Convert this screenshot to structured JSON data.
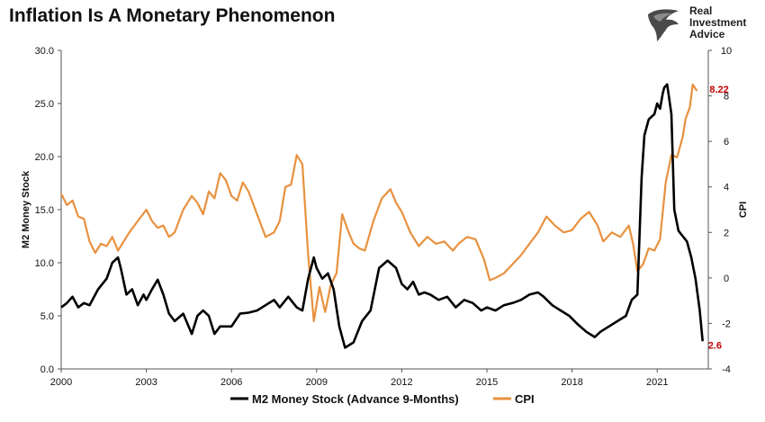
{
  "chart_data": {
    "type": "line",
    "title": "Inflation Is A Monetary Phenomenon",
    "brand": "Real Investment Advice",
    "ylabel_left": "M2 Money Stock",
    "ylabel_right": "CPI",
    "ylim_left": [
      0,
      30
    ],
    "ylim_right": [
      -4,
      10
    ],
    "xlim": [
      2000,
      2022.8
    ],
    "left_ticks": [
      "0.0",
      "5.0",
      "10.0",
      "15.0",
      "20.0",
      "25.0",
      "30.0"
    ],
    "right_ticks": [
      "-4",
      "-2",
      "0",
      "2",
      "4",
      "6",
      "8",
      "10"
    ],
    "x_ticks": [
      "2000",
      "2003",
      "2006",
      "2009",
      "2012",
      "2015",
      "2018",
      "2021"
    ],
    "grid": false,
    "legend_position": "bottom",
    "colors": {
      "m2": "#000000",
      "cpi": "#e8913f",
      "annotation": "#c00000"
    },
    "annotations": [
      {
        "series": "CPI",
        "text": "8.22",
        "x": 2022.4,
        "y": 8.22
      },
      {
        "series": "M2 Money Stock (Advance 9-Months)",
        "text": "2.6",
        "x": 2022.6,
        "y": 2.6
      }
    ],
    "series": [
      {
        "name": "M2 Money Stock (Advance 9-Months)",
        "axis": "left",
        "x": [
          2000.0,
          2000.2,
          2000.4,
          2000.6,
          2000.8,
          2001.0,
          2001.3,
          2001.6,
          2001.8,
          2002.0,
          2002.1,
          2002.3,
          2002.5,
          2002.7,
          2002.9,
          2003.0,
          2003.2,
          2003.4,
          2003.6,
          2003.8,
          2004.0,
          2004.3,
          2004.6,
          2004.8,
          2005.0,
          2005.2,
          2005.4,
          2005.6,
          2005.8,
          2006.0,
          2006.3,
          2006.6,
          2006.9,
          2007.2,
          2007.5,
          2007.7,
          2008.0,
          2008.3,
          2008.5,
          2008.7,
          2008.9,
          2009.0,
          2009.2,
          2009.4,
          2009.6,
          2009.8,
          2010.0,
          2010.3,
          2010.6,
          2010.9,
          2011.2,
          2011.5,
          2011.8,
          2012.0,
          2012.2,
          2012.4,
          2012.6,
          2012.8,
          2013.0,
          2013.3,
          2013.6,
          2013.9,
          2014.2,
          2014.5,
          2014.8,
          2015.0,
          2015.3,
          2015.6,
          2015.9,
          2016.2,
          2016.5,
          2016.8,
          2017.0,
          2017.3,
          2017.6,
          2017.9,
          2018.2,
          2018.5,
          2018.8,
          2019.0,
          2019.3,
          2019.6,
          2019.9,
          2020.1,
          2020.3,
          2020.45,
          2020.55,
          2020.7,
          2020.9,
          2021.0,
          2021.1,
          2021.2,
          2021.25,
          2021.35,
          2021.5,
          2021.6,
          2021.75,
          2021.9,
          2022.05,
          2022.2,
          2022.35,
          2022.5,
          2022.6
        ],
        "values": [
          5.8,
          6.2,
          6.8,
          5.8,
          6.2,
          6.0,
          7.5,
          8.5,
          10.0,
          10.5,
          9.5,
          7.0,
          7.5,
          6.0,
          7.0,
          6.5,
          7.5,
          8.4,
          7.0,
          5.2,
          4.5,
          5.2,
          3.3,
          5.0,
          5.5,
          5.0,
          3.3,
          4.0,
          4.0,
          4.0,
          5.2,
          5.3,
          5.5,
          6.0,
          6.5,
          5.8,
          6.8,
          5.8,
          5.5,
          8.5,
          10.5,
          9.5,
          8.5,
          9.0,
          7.5,
          4.0,
          2.0,
          2.5,
          4.5,
          5.5,
          9.5,
          10.2,
          9.5,
          8.0,
          7.5,
          8.2,
          7.0,
          7.2,
          7.0,
          6.5,
          6.8,
          5.8,
          6.5,
          6.2,
          5.5,
          5.8,
          5.5,
          6.0,
          6.2,
          6.5,
          7.0,
          7.2,
          6.8,
          6.0,
          5.5,
          5.0,
          4.2,
          3.5,
          3.0,
          3.5,
          4.0,
          4.5,
          5.0,
          6.5,
          7.0,
          18.0,
          22.0,
          23.5,
          24.0,
          25.0,
          24.5,
          26.0,
          26.5,
          26.8,
          24.0,
          15.0,
          13.0,
          12.5,
          12.0,
          10.5,
          8.5,
          5.5,
          2.6
        ]
      },
      {
        "name": "CPI",
        "axis": "right",
        "x": [
          2000.0,
          2000.2,
          2000.4,
          2000.6,
          2000.8,
          2001.0,
          2001.2,
          2001.4,
          2001.6,
          2001.8,
          2002.0,
          2002.2,
          2002.4,
          2002.7,
          2003.0,
          2003.2,
          2003.4,
          2003.6,
          2003.8,
          2004.0,
          2004.3,
          2004.6,
          2004.8,
          2005.0,
          2005.2,
          2005.4,
          2005.6,
          2005.8,
          2006.0,
          2006.2,
          2006.4,
          2006.6,
          2006.9,
          2007.2,
          2007.5,
          2007.7,
          2007.9,
          2008.1,
          2008.3,
          2008.5,
          2008.7,
          2008.9,
          2009.1,
          2009.3,
          2009.5,
          2009.7,
          2009.9,
          2010.1,
          2010.3,
          2010.5,
          2010.7,
          2011.0,
          2011.3,
          2011.6,
          2011.8,
          2012.0,
          2012.3,
          2012.6,
          2012.9,
          2013.2,
          2013.5,
          2013.8,
          2014.0,
          2014.3,
          2014.6,
          2014.9,
          2015.1,
          2015.3,
          2015.6,
          2015.9,
          2016.2,
          2016.5,
          2016.8,
          2017.1,
          2017.4,
          2017.7,
          2018.0,
          2018.3,
          2018.6,
          2018.9,
          2019.1,
          2019.4,
          2019.7,
          2020.0,
          2020.15,
          2020.3,
          2020.5,
          2020.7,
          2020.9,
          2021.1,
          2021.3,
          2021.5,
          2021.7,
          2021.9,
          2022.0,
          2022.15,
          2022.25,
          2022.4
        ],
        "values": [
          3.7,
          3.2,
          3.4,
          2.7,
          2.6,
          1.6,
          1.1,
          1.5,
          1.4,
          1.8,
          1.2,
          1.6,
          2.0,
          2.5,
          3.0,
          2.5,
          2.2,
          2.3,
          1.8,
          2.0,
          3.0,
          3.6,
          3.3,
          2.8,
          3.8,
          3.5,
          4.6,
          4.3,
          3.6,
          3.4,
          4.2,
          3.8,
          2.8,
          1.8,
          2.0,
          2.5,
          4.0,
          4.1,
          5.4,
          5.0,
          1.0,
          -1.9,
          -0.4,
          -1.5,
          -0.3,
          0.2,
          2.8,
          2.1,
          1.5,
          1.3,
          1.2,
          2.5,
          3.5,
          3.9,
          3.3,
          2.9,
          2.0,
          1.4,
          1.8,
          1.5,
          1.6,
          1.2,
          1.5,
          1.8,
          1.7,
          0.8,
          -0.1,
          0.0,
          0.2,
          0.6,
          1.0,
          1.5,
          2.0,
          2.7,
          2.3,
          2.0,
          2.1,
          2.6,
          2.9,
          2.3,
          1.6,
          2.0,
          1.8,
          2.3,
          1.5,
          0.3,
          0.6,
          1.3,
          1.2,
          1.7,
          4.2,
          5.4,
          5.3,
          6.2,
          7.0,
          7.5,
          8.5,
          8.22
        ]
      }
    ]
  }
}
